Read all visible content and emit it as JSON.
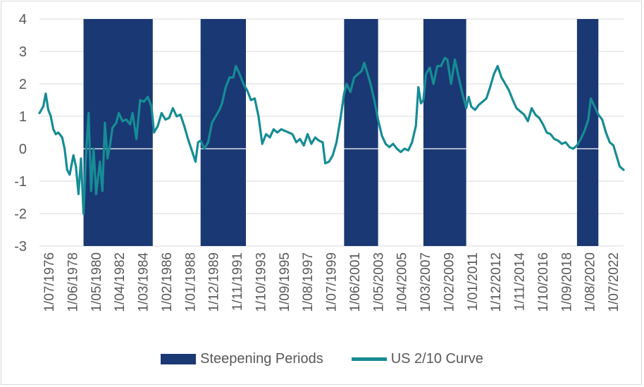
{
  "chart_data": {
    "type": "line",
    "title": "",
    "xlabel": "",
    "ylabel": "",
    "ylim": [
      -3,
      4
    ],
    "yticks": [
      "4",
      "3",
      "2",
      "1",
      "0",
      "-1",
      "-2",
      "-3"
    ],
    "xticks": [
      "1/07/1976",
      "1/06/1978",
      "1/05/1980",
      "1/04/1982",
      "1/03/1984",
      "1/02/1986",
      "1/01/1988",
      "1/12/1989",
      "1/11/1991",
      "1/10/1993",
      "1/09/1995",
      "1/08/1997",
      "1/07/1999",
      "1/06/2001",
      "1/05/2003",
      "1/04/2005",
      "1/03/2007",
      "1/02/2009",
      "1/01/2011",
      "1/12/2012",
      "1/11/2014",
      "1/10/2016",
      "1/09/2018",
      "1/08/2020",
      "1/07/2022"
    ],
    "xrange": [
      1976.5,
      2022.9
    ],
    "grid": "horizontal",
    "legend_position": "bottom",
    "steepening_periods": [
      {
        "start": 1980.0,
        "end": 1985.5
      },
      {
        "start": 1989.3,
        "end": 1992.9
      },
      {
        "start": 2000.7,
        "end": 2003.4
      },
      {
        "start": 2007.0,
        "end": 2010.4
      },
      {
        "start": 2019.2,
        "end": 2020.9
      }
    ],
    "series": [
      {
        "name": "US 2/10 Curve",
        "color": "#168c95",
        "points": [
          [
            1976.5,
            1.1
          ],
          [
            1976.8,
            1.3
          ],
          [
            1977.0,
            1.7
          ],
          [
            1977.2,
            1.2
          ],
          [
            1977.4,
            1.0
          ],
          [
            1977.6,
            0.6
          ],
          [
            1977.8,
            0.45
          ],
          [
            1978.0,
            0.5
          ],
          [
            1978.3,
            0.35
          ],
          [
            1978.5,
            0.0
          ],
          [
            1978.7,
            -0.65
          ],
          [
            1978.9,
            -0.8
          ],
          [
            1979.2,
            -0.2
          ],
          [
            1979.4,
            -0.55
          ],
          [
            1979.6,
            -1.4
          ],
          [
            1979.8,
            -0.3
          ],
          [
            1980.0,
            -2.0
          ],
          [
            1980.2,
            -0.2
          ],
          [
            1980.4,
            1.1
          ],
          [
            1980.6,
            -1.3
          ],
          [
            1980.8,
            0.0
          ],
          [
            1981.0,
            -1.4
          ],
          [
            1981.3,
            -0.4
          ],
          [
            1981.5,
            -1.3
          ],
          [
            1981.7,
            0.8
          ],
          [
            1981.9,
            -0.3
          ],
          [
            1982.1,
            0.1
          ],
          [
            1982.3,
            0.65
          ],
          [
            1982.6,
            0.8
          ],
          [
            1982.8,
            1.1
          ],
          [
            1983.1,
            0.85
          ],
          [
            1983.4,
            0.9
          ],
          [
            1983.7,
            0.75
          ],
          [
            1983.9,
            1.1
          ],
          [
            1984.2,
            0.3
          ],
          [
            1984.5,
            1.5
          ],
          [
            1984.8,
            1.45
          ],
          [
            1985.1,
            1.6
          ],
          [
            1985.4,
            1.3
          ],
          [
            1985.6,
            0.5
          ],
          [
            1985.9,
            0.7
          ],
          [
            1986.2,
            1.1
          ],
          [
            1986.5,
            0.9
          ],
          [
            1986.8,
            0.95
          ],
          [
            1987.1,
            1.25
          ],
          [
            1987.4,
            1.0
          ],
          [
            1987.7,
            1.05
          ],
          [
            1988.0,
            0.7
          ],
          [
            1988.3,
            0.3
          ],
          [
            1988.6,
            -0.05
          ],
          [
            1988.9,
            -0.4
          ],
          [
            1989.1,
            0.2
          ],
          [
            1989.3,
            0.25
          ],
          [
            1989.6,
            0.0
          ],
          [
            1989.9,
            0.2
          ],
          [
            1990.2,
            0.8
          ],
          [
            1990.5,
            1.0
          ],
          [
            1990.8,
            1.2
          ],
          [
            1991.0,
            1.4
          ],
          [
            1991.3,
            1.9
          ],
          [
            1991.6,
            2.2
          ],
          [
            1991.9,
            2.2
          ],
          [
            1992.1,
            2.55
          ],
          [
            1992.4,
            2.3
          ],
          [
            1992.7,
            2.0
          ],
          [
            1993.0,
            1.8
          ],
          [
            1993.3,
            1.5
          ],
          [
            1993.6,
            1.55
          ],
          [
            1993.9,
            1.0
          ],
          [
            1994.2,
            0.15
          ],
          [
            1994.5,
            0.45
          ],
          [
            1994.8,
            0.35
          ],
          [
            1995.1,
            0.6
          ],
          [
            1995.4,
            0.5
          ],
          [
            1995.7,
            0.6
          ],
          [
            1996.0,
            0.55
          ],
          [
            1996.3,
            0.5
          ],
          [
            1996.6,
            0.45
          ],
          [
            1996.9,
            0.2
          ],
          [
            1997.2,
            0.3
          ],
          [
            1997.5,
            0.1
          ],
          [
            1997.8,
            0.45
          ],
          [
            1998.1,
            0.15
          ],
          [
            1998.4,
            0.35
          ],
          [
            1998.7,
            0.25
          ],
          [
            1999.0,
            0.2
          ],
          [
            1999.2,
            -0.45
          ],
          [
            1999.5,
            -0.4
          ],
          [
            1999.8,
            -0.2
          ],
          [
            2000.1,
            0.2
          ],
          [
            2000.4,
            0.9
          ],
          [
            2000.7,
            1.7
          ],
          [
            2000.9,
            2.0
          ],
          [
            2001.2,
            1.75
          ],
          [
            2001.5,
            2.2
          ],
          [
            2001.8,
            2.3
          ],
          [
            2002.1,
            2.4
          ],
          [
            2002.3,
            2.65
          ],
          [
            2002.5,
            2.4
          ],
          [
            2002.8,
            2.0
          ],
          [
            2003.1,
            1.5
          ],
          [
            2003.4,
            0.9
          ],
          [
            2003.7,
            0.4
          ],
          [
            2004.0,
            0.15
          ],
          [
            2004.3,
            0.05
          ],
          [
            2004.6,
            0.15
          ],
          [
            2004.9,
            0.0
          ],
          [
            2005.2,
            -0.1
          ],
          [
            2005.5,
            0.0
          ],
          [
            2005.8,
            -0.05
          ],
          [
            2006.1,
            0.2
          ],
          [
            2006.4,
            0.7
          ],
          [
            2006.6,
            1.9
          ],
          [
            2006.8,
            1.4
          ],
          [
            2007.0,
            1.5
          ],
          [
            2007.2,
            2.3
          ],
          [
            2007.5,
            2.5
          ],
          [
            2007.8,
            2.0
          ],
          [
            2008.1,
            2.55
          ],
          [
            2008.4,
            2.55
          ],
          [
            2008.7,
            2.8
          ],
          [
            2008.9,
            2.75
          ],
          [
            2009.2,
            2.0
          ],
          [
            2009.5,
            2.75
          ],
          [
            2009.8,
            2.2
          ],
          [
            2010.1,
            1.7
          ],
          [
            2010.4,
            1.25
          ],
          [
            2010.6,
            1.6
          ],
          [
            2010.8,
            1.3
          ],
          [
            2011.1,
            1.2
          ],
          [
            2011.4,
            1.35
          ],
          [
            2011.7,
            1.45
          ],
          [
            2012.0,
            1.55
          ],
          [
            2012.3,
            1.9
          ],
          [
            2012.6,
            2.3
          ],
          [
            2012.9,
            2.55
          ],
          [
            2013.2,
            2.2
          ],
          [
            2013.5,
            2.0
          ],
          [
            2013.8,
            1.8
          ],
          [
            2014.1,
            1.5
          ],
          [
            2014.4,
            1.25
          ],
          [
            2014.7,
            1.15
          ],
          [
            2015.0,
            1.05
          ],
          [
            2015.3,
            0.85
          ],
          [
            2015.6,
            1.25
          ],
          [
            2015.9,
            1.05
          ],
          [
            2016.2,
            0.95
          ],
          [
            2016.5,
            0.75
          ],
          [
            2016.8,
            0.5
          ],
          [
            2017.1,
            0.45
          ],
          [
            2017.4,
            0.3
          ],
          [
            2017.7,
            0.25
          ],
          [
            2018.0,
            0.15
          ],
          [
            2018.3,
            0.2
          ],
          [
            2018.6,
            0.05
          ],
          [
            2018.9,
            0.0
          ],
          [
            2019.2,
            0.1
          ],
          [
            2019.5,
            0.3
          ],
          [
            2019.8,
            0.55
          ],
          [
            2020.1,
            0.9
          ],
          [
            2020.3,
            1.55
          ],
          [
            2020.6,
            1.3
          ],
          [
            2020.9,
            1.05
          ],
          [
            2021.2,
            0.9
          ],
          [
            2021.5,
            0.5
          ],
          [
            2021.8,
            0.2
          ],
          [
            2022.1,
            0.1
          ],
          [
            2022.4,
            -0.3
          ],
          [
            2022.6,
            -0.55
          ],
          [
            2022.9,
            -0.65
          ]
        ]
      }
    ]
  },
  "legend": {
    "steepening_label": "Steepening Periods",
    "steepening_color": "#1a3873",
    "curve_label": "US 2/10 Curve",
    "curve_color": "#168c95"
  },
  "axis_color": "#595959",
  "grid_color": "#d9d9d9"
}
